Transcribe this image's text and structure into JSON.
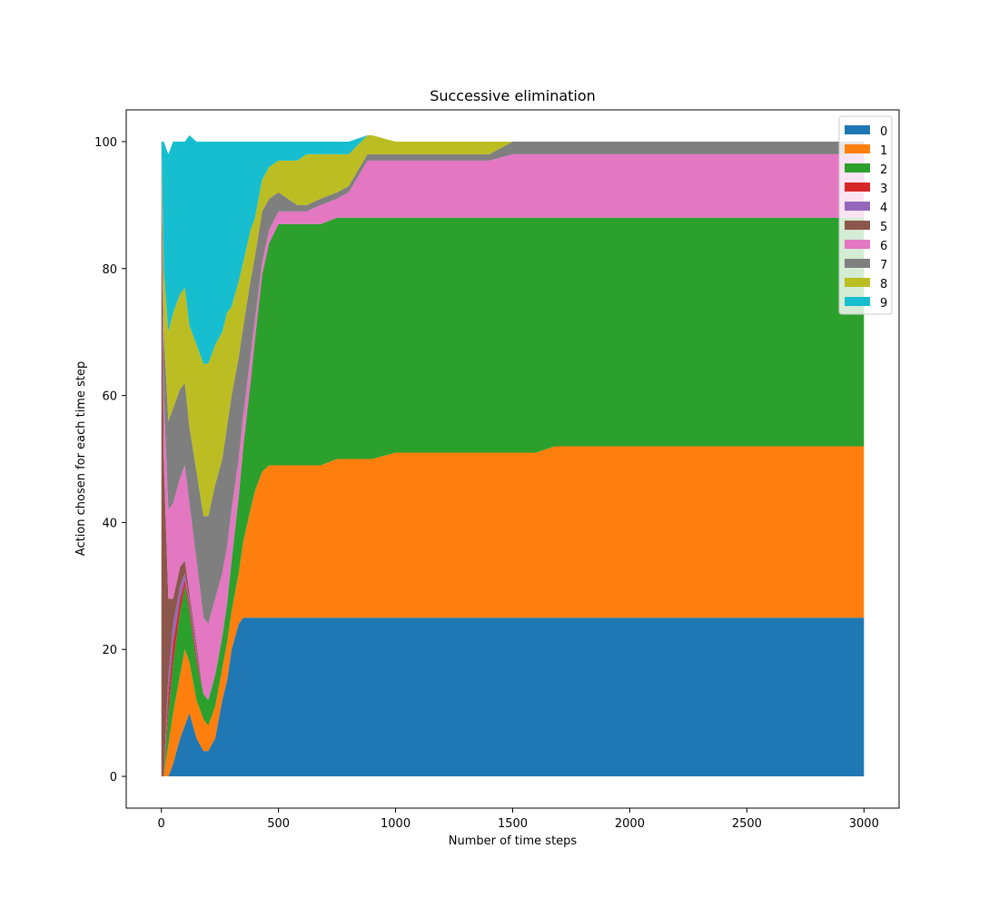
{
  "chart_data": {
    "type": "area",
    "title": "Successive elimination",
    "xlabel": "Number of time steps",
    "ylabel": "Action chosen for each time step",
    "xlim": [
      -150,
      3150
    ],
    "ylim": [
      -5,
      105
    ],
    "xticks": [
      0,
      500,
      1000,
      1500,
      2000,
      2500,
      3000
    ],
    "yticks": [
      0,
      20,
      40,
      60,
      80,
      100
    ],
    "grid": false,
    "legend_position": "top-right",
    "x": [
      0,
      10,
      30,
      50,
      80,
      100,
      120,
      150,
      180,
      200,
      230,
      260,
      280,
      300,
      330,
      350,
      380,
      400,
      430,
      460,
      500,
      540,
      580,
      620,
      680,
      750,
      800,
      880,
      900,
      1000,
      1050,
      1100,
      1400,
      1500,
      1600,
      1680,
      2000,
      2500,
      3000
    ],
    "series": [
      {
        "name": "0",
        "color": "#1f77b4",
        "values": [
          0,
          0,
          0,
          2,
          6,
          8,
          10,
          6,
          4,
          4,
          6,
          12,
          15,
          20,
          24,
          25,
          25,
          25,
          25,
          25,
          25,
          25,
          25,
          25,
          25,
          25,
          25,
          25,
          25,
          25,
          25,
          25,
          25,
          25,
          25,
          25,
          25,
          25,
          25
        ]
      },
      {
        "name": "1",
        "color": "#ff7f0e",
        "values": [
          0,
          0,
          5,
          8,
          10,
          12,
          8,
          6,
          5,
          4,
          5,
          5,
          6,
          6,
          8,
          12,
          17,
          20,
          23,
          24,
          24,
          24,
          24,
          24,
          24,
          25,
          25,
          25,
          25,
          26,
          26,
          26,
          26,
          26,
          26,
          27,
          27,
          27,
          27
        ]
      },
      {
        "name": "2",
        "color": "#2ca02c",
        "values": [
          0,
          0,
          5,
          8,
          10,
          10,
          8,
          6,
          4,
          4,
          5,
          5,
          6,
          8,
          12,
          15,
          20,
          24,
          31,
          35,
          38,
          38,
          38,
          38,
          38,
          38,
          38,
          38,
          38,
          37,
          37,
          37,
          37,
          37,
          37,
          36,
          36,
          36,
          36
        ]
      },
      {
        "name": "3",
        "color": "#d62728",
        "values": [
          0,
          0,
          3,
          3,
          2,
          1,
          1,
          1,
          0,
          0,
          0,
          0,
          0,
          0,
          0,
          0,
          0,
          0,
          0,
          0,
          0,
          0,
          0,
          0,
          0,
          0,
          0,
          0,
          0,
          0,
          0,
          0,
          0,
          0,
          0,
          0,
          0,
          0,
          0
        ]
      },
      {
        "name": "4",
        "color": "#9467bd",
        "values": [
          0,
          0,
          3,
          3,
          2,
          1,
          1,
          1,
          0,
          0,
          0,
          0,
          0,
          0,
          0,
          0,
          0,
          0,
          0,
          0,
          0,
          0,
          0,
          0,
          0,
          0,
          0,
          0,
          0,
          0,
          0,
          0,
          0,
          0,
          0,
          0,
          0,
          0,
          0
        ]
      },
      {
        "name": "5",
        "color": "#8c564b",
        "values": [
          100,
          50,
          12,
          4,
          3,
          2,
          1,
          1,
          0,
          0,
          0,
          0,
          0,
          0,
          0,
          0,
          0,
          0,
          0,
          0,
          0,
          0,
          0,
          0,
          0,
          0,
          0,
          0,
          0,
          0,
          0,
          0,
          0,
          0,
          0,
          0,
          0,
          0,
          0
        ]
      },
      {
        "name": "6",
        "color": "#e377c2",
        "values": [
          0,
          10,
          14,
          15,
          14,
          15,
          14,
          13,
          12,
          12,
          12,
          10,
          9,
          8,
          6,
          5,
          4,
          3,
          2,
          2,
          2,
          2,
          2,
          2,
          3,
          3,
          4,
          9,
          9,
          9,
          9,
          9,
          9,
          10,
          10,
          10,
          10,
          10,
          10
        ]
      },
      {
        "name": "7",
        "color": "#7f7f7f",
        "values": [
          0,
          10,
          14,
          15,
          14,
          13,
          12,
          14,
          16,
          17,
          18,
          18,
          19,
          18,
          16,
          14,
          12,
          10,
          8,
          5,
          3,
          2,
          1,
          1,
          1,
          1,
          1,
          1,
          1,
          1,
          1,
          1,
          1,
          2,
          2,
          2,
          2,
          2,
          2
        ]
      },
      {
        "name": "8",
        "color": "#bcbd22",
        "values": [
          0,
          10,
          14,
          15,
          15,
          15,
          16,
          20,
          24,
          24,
          22,
          20,
          18,
          14,
          12,
          10,
          8,
          6,
          5,
          5,
          5,
          6,
          7,
          8,
          7,
          6,
          5,
          3,
          3,
          2,
          2,
          2,
          2,
          0,
          0,
          0,
          0,
          0,
          0
        ]
      },
      {
        "name": "9",
        "color": "#17becf",
        "values": [
          0,
          20,
          28,
          27,
          24,
          23,
          30,
          32,
          35,
          35,
          32,
          30,
          27,
          26,
          22,
          19,
          14,
          12,
          6,
          4,
          3,
          3,
          3,
          2,
          2,
          2,
          2,
          0,
          0,
          0,
          0,
          0,
          0,
          0,
          0,
          0,
          0,
          0,
          0
        ]
      }
    ]
  }
}
